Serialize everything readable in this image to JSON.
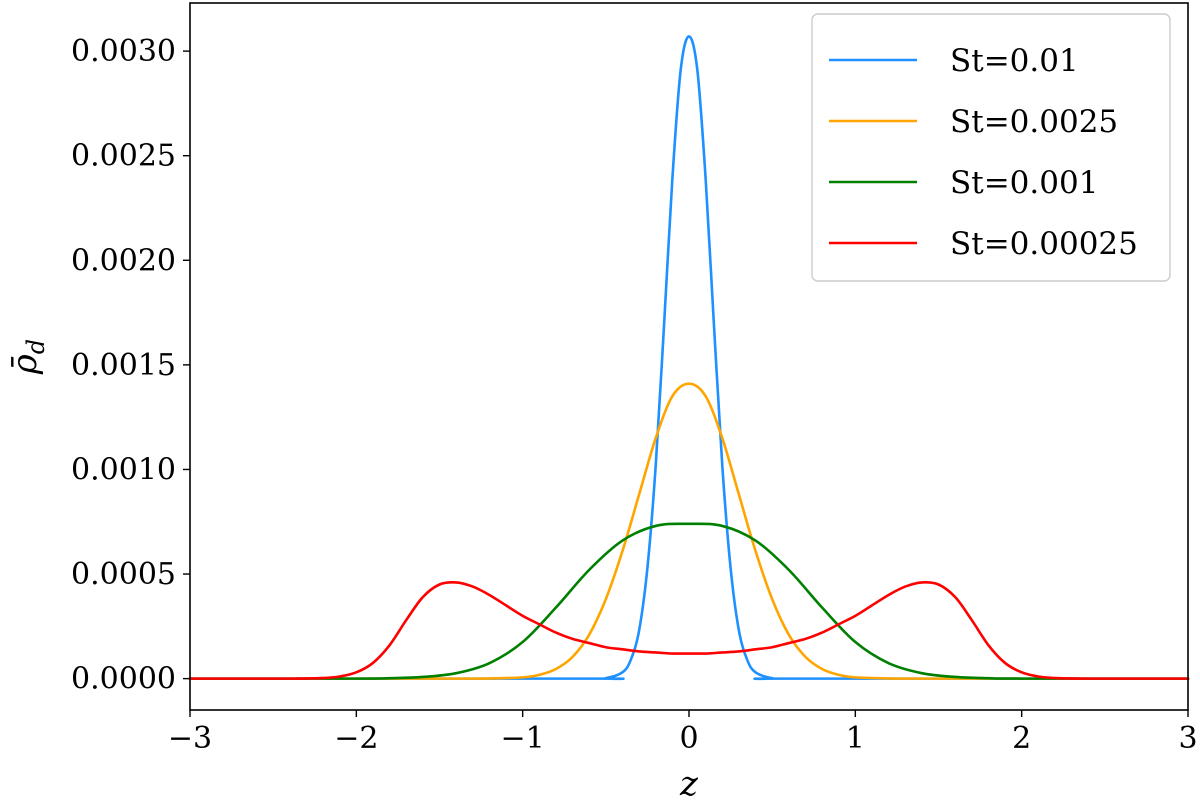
{
  "chart_data": {
    "type": "line",
    "title": "",
    "xlabel": "z",
    "ylabel": "ρ̄_d",
    "xlim": [
      -3,
      3
    ],
    "ylim": [
      -0.00015,
      0.00323
    ],
    "xticks": [
      -3,
      -2,
      -1,
      0,
      1,
      2,
      3
    ],
    "xtick_labels": [
      "−3",
      "−2",
      "−1",
      "0",
      "1",
      "2",
      "3"
    ],
    "yticks": [
      0,
      0.0005,
      0.001,
      0.0015,
      0.002,
      0.0025,
      0.003
    ],
    "ytick_labels": [
      "0.0000",
      "0.0005",
      "0.0010",
      "0.0015",
      "0.0020",
      "0.0025",
      "0.0030"
    ],
    "grid": false,
    "legend_position": "top-right",
    "series": [
      {
        "name": "St=0.01",
        "color": "#1E90FF",
        "x": [
          -3,
          -0.6,
          -0.5,
          -0.4,
          -0.35,
          -0.3,
          -0.25,
          -0.2,
          -0.15,
          -0.1,
          -0.05,
          0,
          0.05,
          0.1,
          0.15,
          0.2,
          0.25,
          0.3,
          0.35,
          0.4,
          0.5,
          0.6,
          3
        ],
        "y": [
          0,
          0,
          2e-06,
          3e-05,
          9e-05,
          0.00023,
          0.00053,
          0.00102,
          0.00169,
          0.00239,
          0.00291,
          0.00307,
          0.00291,
          0.00239,
          0.00169,
          0.00102,
          0.00053,
          0.00023,
          9e-05,
          3e-05,
          2e-06,
          0,
          0
        ]
      },
      {
        "name": "St=0.0025",
        "color": "#FFA500",
        "x": [
          -3,
          -1.4,
          -1.2,
          -1,
          -0.9,
          -0.8,
          -0.7,
          -0.6,
          -0.5,
          -0.4,
          -0.3,
          -0.2,
          -0.1,
          0,
          0.1,
          0.2,
          0.3,
          0.4,
          0.5,
          0.6,
          0.7,
          0.8,
          0.9,
          1,
          1.2,
          1.4,
          3
        ],
        "y": [
          0,
          0,
          1e-06,
          6e-06,
          1.8e-05,
          4.6e-05,
          0.000104,
          0.00021,
          0.00038,
          0.00061,
          0.00088,
          0.00115,
          0.00135,
          0.00141,
          0.00135,
          0.00115,
          0.00088,
          0.00061,
          0.00038,
          0.00021,
          0.000104,
          4.6e-05,
          1.8e-05,
          6e-06,
          1e-06,
          0,
          0
        ]
      },
      {
        "name": "St=0.001",
        "color": "#008000",
        "x": [
          -3,
          -2,
          -1.8,
          -1.6,
          -1.4,
          -1.2,
          -1,
          -0.8,
          -0.6,
          -0.4,
          -0.2,
          0,
          0.2,
          0.4,
          0.6,
          0.8,
          1,
          1.2,
          1.4,
          1.6,
          1.8,
          2,
          3
        ],
        "y": [
          0,
          0,
          2e-06,
          8e-06,
          2.6e-05,
          7.4e-05,
          0.000175,
          0.00034,
          0.00052,
          0.00066,
          0.00073,
          0.00074,
          0.00073,
          0.00066,
          0.00052,
          0.00034,
          0.000175,
          7.4e-05,
          2.6e-05,
          8e-06,
          2e-06,
          0,
          0
        ]
      },
      {
        "name": "St=0.00025",
        "color": "#FF0000",
        "x": [
          -3,
          -2.4,
          -2.2,
          -2.1,
          -2,
          -1.9,
          -1.8,
          -1.7,
          -1.6,
          -1.5,
          -1.4,
          -1.3,
          -1.2,
          -1.1,
          -1,
          -0.9,
          -0.8,
          -0.7,
          -0.6,
          -0.5,
          -0.4,
          -0.3,
          -0.2,
          -0.1,
          0,
          0.1,
          0.2,
          0.3,
          0.4,
          0.5,
          0.6,
          0.7,
          0.8,
          0.9,
          1,
          1.1,
          1.2,
          1.3,
          1.4,
          1.5,
          1.6,
          1.7,
          1.8,
          1.9,
          2,
          2.1,
          2.2,
          2.4,
          3
        ],
        "y": [
          0,
          0,
          3e-06,
          1e-05,
          3e-05,
          7.5e-05,
          0.00016,
          0.00028,
          0.00039,
          0.00045,
          0.00046,
          0.00044,
          0.0004,
          0.00035,
          0.0003,
          0.00026,
          0.00022,
          0.00019,
          0.00017,
          0.00015,
          0.00014,
          0.00013,
          0.000125,
          0.00012,
          0.00012,
          0.00012,
          0.000125,
          0.00013,
          0.00014,
          0.00015,
          0.00017,
          0.00019,
          0.00022,
          0.00026,
          0.0003,
          0.00035,
          0.0004,
          0.00044,
          0.00046,
          0.00045,
          0.00039,
          0.00028,
          0.00016,
          7.5e-05,
          3e-05,
          1e-05,
          3e-06,
          0,
          0
        ]
      }
    ]
  }
}
